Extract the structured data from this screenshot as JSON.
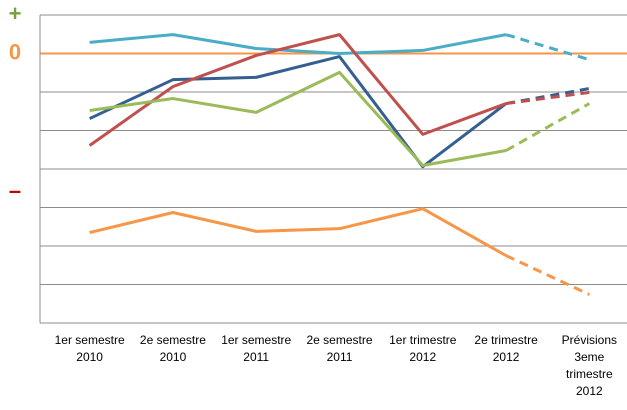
{
  "chart_data": {
    "type": "line",
    "categories": [
      [
        "1er semestre",
        "2010"
      ],
      [
        "2e semestre",
        "2010"
      ],
      [
        "1er semestre",
        "2011"
      ],
      [
        "2e semestre",
        "2011"
      ],
      [
        "1er trimestre",
        "2012"
      ],
      [
        "2e trimestre",
        "2012"
      ],
      [
        "Prévisions",
        "3eme",
        "trimestre",
        "2012"
      ]
    ],
    "series": [
      {
        "name": null,
        "color": "#4bacc6",
        "values": [
          0.29,
          0.49,
          0.13,
          0,
          0.08,
          0.49,
          -0.16
        ]
      },
      {
        "name": null,
        "color": "#365f91",
        "values": [
          -1.69,
          -0.68,
          -0.62,
          -0.08,
          -2.94,
          -1.3,
          -0.91
        ]
      },
      {
        "name": null,
        "color": "#c0504d",
        "values": [
          -2.39,
          -0.86,
          -0.05,
          0.49,
          -2.1,
          -1.3,
          -1.01
        ]
      },
      {
        "name": null,
        "color": "#9bbb59",
        "values": [
          -1.48,
          -1.17,
          -1.53,
          -0.49,
          -2.91,
          -2.52,
          -1.3
        ]
      },
      {
        "name": null,
        "color": "#f79646",
        "values": [
          -4.65,
          -4.13,
          -4.62,
          -4.55,
          -4.03,
          -5.25,
          -6.26
        ]
      }
    ],
    "dashed_from": 5,
    "ylim": [
      -7,
      1
    ],
    "yticks": [
      {
        "value": 1,
        "label": "+",
        "color": "#77a03a"
      },
      {
        "value": 0,
        "label": "0",
        "color": "#f79646"
      },
      {
        "value": -3.6,
        "label": "–",
        "color": "#c00000"
      }
    ],
    "grid": [
      1,
      0,
      -1,
      -2,
      -3,
      -4,
      -5,
      -6,
      -7
    ],
    "grid_color": "#8c8c8c",
    "zero_line_color": "#f79646"
  }
}
